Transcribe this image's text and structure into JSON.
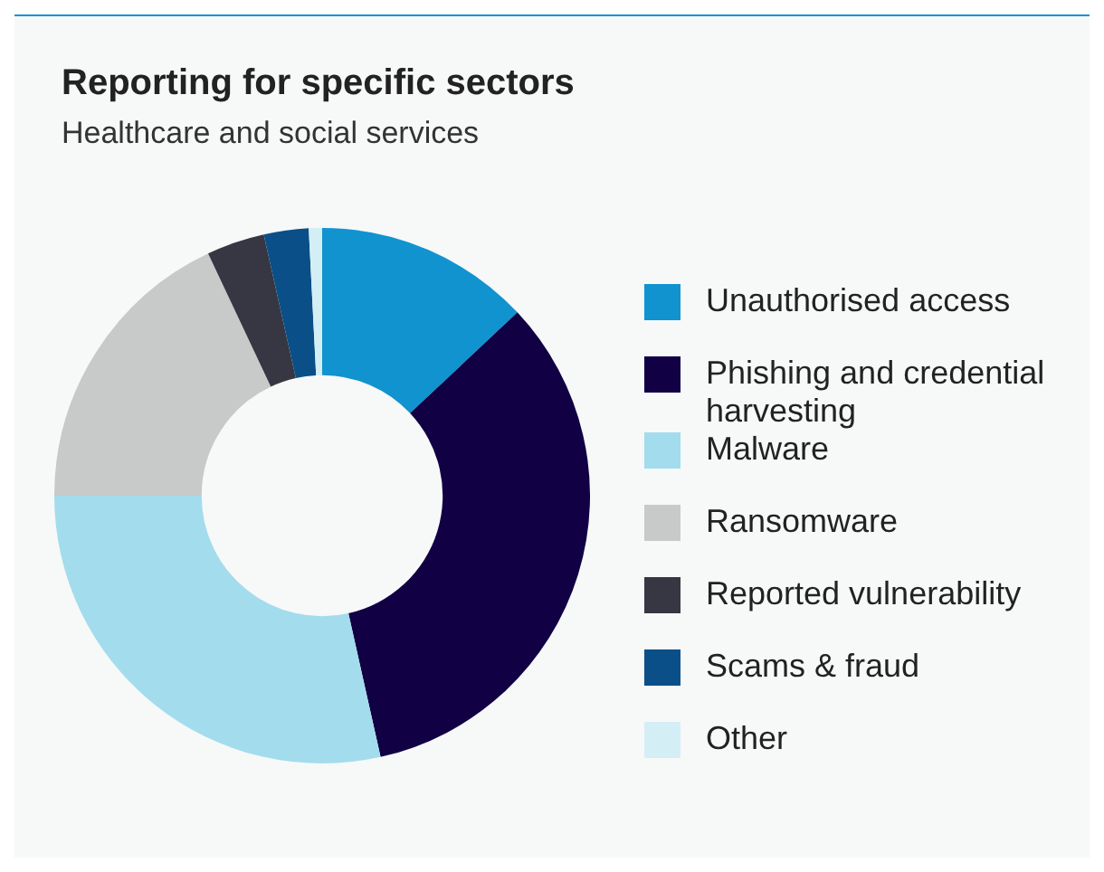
{
  "chart_data": {
    "type": "donut",
    "title": "Reporting for specific sectors",
    "subtitle": "Healthcare and social services",
    "categories": [
      "Unauthorised access",
      "Phishing and credential harvesting",
      "Malware",
      "Ransomware",
      "Reported vulnerability",
      "Scams & fraud",
      "Other"
    ],
    "values": [
      13,
      33.5,
      28.5,
      18,
      3.5,
      2.7,
      0.8
    ],
    "colors": [
      "#1193d0",
      "#110044",
      "#a3dced",
      "#c8c9c9",
      "#363742",
      "#0a4f88",
      "#d4eef6"
    ],
    "legend": "right"
  }
}
